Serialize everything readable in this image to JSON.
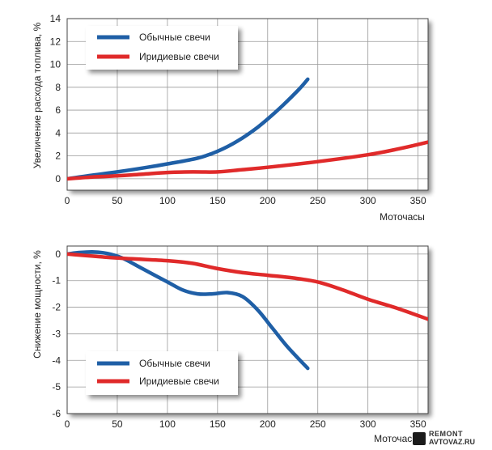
{
  "chart_data": [
    {
      "type": "line",
      "xlabel": "Моточасы",
      "ylabel": "Увеличение расхода топлива, %",
      "xlim": [
        0,
        360
      ],
      "ylim": [
        -1,
        14
      ],
      "x_ticks": [
        0,
        50,
        100,
        150,
        200,
        250,
        300,
        350
      ],
      "y_ticks": [
        0,
        2,
        4,
        6,
        8,
        10,
        12,
        14
      ],
      "grid": true,
      "legend_position": "top-left",
      "series": [
        {
          "name": "Обычные свечи",
          "color": "#1f5fa6",
          "x": [
            0,
            20,
            50,
            80,
            100,
            130,
            150,
            170,
            190,
            210,
            230,
            240
          ],
          "y": [
            0,
            0.25,
            0.6,
            1.0,
            1.3,
            1.8,
            2.4,
            3.3,
            4.5,
            6.0,
            7.7,
            8.7
          ]
        },
        {
          "name": "Иридиевые свечи",
          "color": "#e02a2a",
          "x": [
            0,
            25,
            50,
            75,
            100,
            125,
            150,
            175,
            200,
            250,
            300,
            330,
            360
          ],
          "y": [
            0,
            0.15,
            0.25,
            0.4,
            0.55,
            0.6,
            0.6,
            0.8,
            1.0,
            1.5,
            2.1,
            2.6,
            3.2
          ]
        }
      ]
    },
    {
      "type": "line",
      "xlabel": "Моточасы",
      "ylabel": "Снижение мощности, %",
      "xlim": [
        0,
        360
      ],
      "ylim": [
        -6,
        0.3
      ],
      "x_ticks": [
        0,
        50,
        100,
        150,
        200,
        250,
        300,
        350
      ],
      "y_ticks": [
        0,
        -1,
        -2,
        -3,
        -4,
        -5,
        -6
      ],
      "grid": true,
      "legend_position": "bottom-left",
      "series": [
        {
          "name": "Обычные свечи",
          "color": "#1f5fa6",
          "x": [
            0,
            10,
            25,
            40,
            55,
            75,
            100,
            115,
            130,
            145,
            160,
            175,
            190,
            205,
            220,
            240
          ],
          "y": [
            0,
            0.05,
            0.08,
            0.02,
            -0.15,
            -0.55,
            -1.05,
            -1.35,
            -1.5,
            -1.5,
            -1.45,
            -1.6,
            -2.1,
            -2.8,
            -3.5,
            -4.3
          ]
        },
        {
          "name": "Иридиевые свечи",
          "color": "#e02a2a",
          "x": [
            0,
            50,
            100,
            125,
            150,
            175,
            200,
            225,
            250,
            275,
            300,
            330,
            360
          ],
          "y": [
            0,
            -0.15,
            -0.25,
            -0.35,
            -0.55,
            -0.7,
            -0.8,
            -0.9,
            -1.05,
            -1.35,
            -1.7,
            -2.05,
            -2.45
          ]
        }
      ]
    }
  ],
  "watermark": {
    "line1": "REMONT",
    "line2": "AVTOVAZ.RU"
  }
}
